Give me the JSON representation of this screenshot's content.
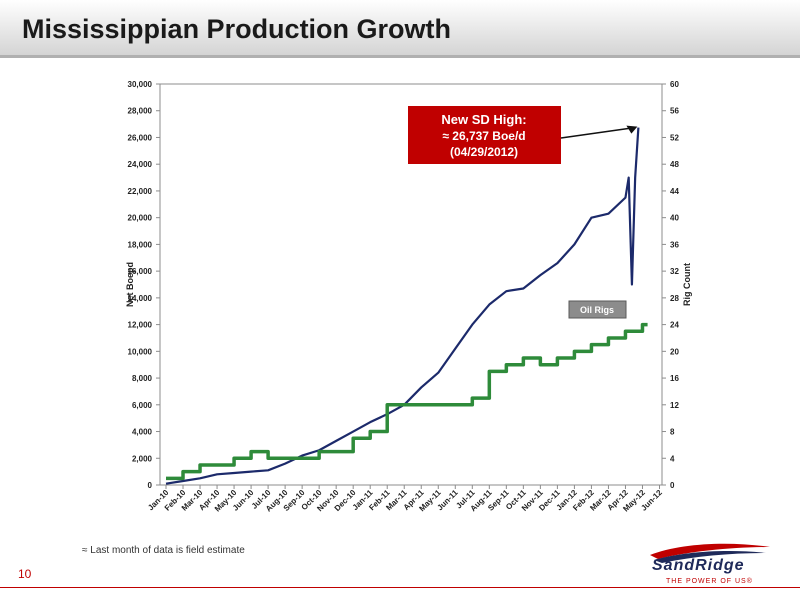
{
  "slide": {
    "title": "Mississippian Production Growth",
    "page_number": "10",
    "footnote": "≈ Last month of data is field estimate",
    "logo_name": "SandRidge",
    "logo_tagline": "THE POWER OF US®"
  },
  "colors": {
    "production": "#1c2a6b",
    "rigs": "#2e8b3a",
    "callout": "#c00000",
    "header_rule": "#c00000"
  },
  "chart_data": {
    "type": "line",
    "ylabel": "Net Boepd",
    "y2label": "Rig Count",
    "ylim": [
      0,
      30000
    ],
    "y2lim": [
      0,
      60
    ],
    "y_ticks": [
      "0",
      "2,000",
      "4,000",
      "6,000",
      "8,000",
      "10,000",
      "12,000",
      "14,000",
      "16,000",
      "18,000",
      "20,000",
      "22,000",
      "24,000",
      "26,000",
      "28,000",
      "30,000"
    ],
    "y2_ticks": [
      "0",
      "4",
      "8",
      "12",
      "16",
      "20",
      "24",
      "28",
      "32",
      "36",
      "40",
      "44",
      "48",
      "52",
      "56",
      "60"
    ],
    "x_ticks": [
      "Jan-10",
      "Feb-10",
      "Mar-10",
      "Apr-10",
      "May-10",
      "Jun-10",
      "Jul-10",
      "Aug-10",
      "Sep-10",
      "Oct-10",
      "Nov-10",
      "Dec-10",
      "Jan-11",
      "Feb-11",
      "Mar-11",
      "Apr-11",
      "May-11",
      "Jun-11",
      "Jul-11",
      "Aug-11",
      "Sep-11",
      "Oct-11",
      "Nov-11",
      "Dec-11",
      "Jan-12",
      "Feb-12",
      "Mar-12",
      "Apr-12",
      "May-12",
      "Jun-12"
    ],
    "grid": false,
    "series": [
      {
        "name": "Net Boepd",
        "axis": "left",
        "x": [
          "Jan-10",
          "Feb-10",
          "Mar-10",
          "Apr-10",
          "May-10",
          "Jun-10",
          "Jul-10",
          "Aug-10",
          "Sep-10",
          "Oct-10",
          "Nov-10",
          "Dec-10",
          "Jan-11",
          "Feb-11",
          "Mar-11",
          "Apr-11",
          "May-11",
          "Jun-11",
          "Jul-11",
          "Aug-11",
          "Sep-11",
          "Oct-11",
          "Nov-11",
          "Dec-11",
          "Jan-12",
          "Feb-12",
          "Mar-12",
          "Apr-12",
          "Apr-12",
          "Apr-12",
          "Apr-12",
          "Apr-12"
        ],
        "values": [
          100,
          300,
          500,
          800,
          900,
          1000,
          1100,
          1600,
          2200,
          2600,
          3300,
          4000,
          4700,
          5300,
          6000,
          7300,
          8400,
          10200,
          12000,
          13500,
          14500,
          14700,
          15700,
          16600,
          18000,
          20000,
          20300,
          21500,
          23000,
          15000,
          23000,
          26737
        ]
      },
      {
        "name": "Oil Rigs",
        "axis": "right",
        "step": true,
        "x": [
          "Jan-10",
          "Feb-10",
          "Mar-10",
          "Apr-10",
          "May-10",
          "Jun-10",
          "Jul-10",
          "Aug-10",
          "Sep-10",
          "Oct-10",
          "Nov-10",
          "Dec-10",
          "Jan-11",
          "Feb-11",
          "Mar-11",
          "Apr-11",
          "May-11",
          "Jun-11",
          "Jul-11",
          "Aug-11",
          "Sep-11",
          "Oct-11",
          "Nov-11",
          "Dec-11",
          "Jan-12",
          "Feb-12",
          "Mar-12",
          "Apr-12",
          "May-12"
        ],
        "values": [
          1,
          2,
          3,
          3,
          4,
          5,
          4,
          4,
          4,
          5,
          5,
          7,
          8,
          12,
          12,
          12,
          12,
          12,
          13,
          17,
          18,
          19,
          18,
          19,
          20,
          21,
          22,
          23,
          24
        ]
      }
    ],
    "annotations": {
      "callout_lines": [
        "New SD High:",
        "≈ 26,737 Boe/d",
        "(04/29/2012)"
      ],
      "oil_rigs_label": "Oil Rigs"
    }
  }
}
